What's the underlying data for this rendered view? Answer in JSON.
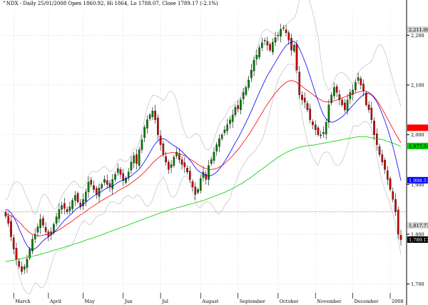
{
  "chart_data": {
    "type": "candlestick",
    "title": "^NDX - Daily 25/01/2008 Open 1860.92, Hi 1864, Lo 1788.07, Close 1789.17 (-2.1%)",
    "ylim": [
      1685,
      2245
    ],
    "y_ticks": [
      "2,200",
      "2,100",
      "2,000",
      "1,900",
      "1,800",
      "1,700"
    ],
    "y_tick_values": [
      2200,
      2100,
      2000,
      1900,
      1800,
      1700
    ],
    "months": [
      "March",
      "April",
      "May",
      "Jun",
      "Jul",
      "August",
      "September",
      "October",
      "November",
      "December",
      "2008"
    ],
    "badges": [
      {
        "label": "2,211.08",
        "value": 2211.08,
        "bg": "#d3d3d3",
        "fg": "#000000"
      },
      {
        "label": "2,014.01",
        "value": 2014.01,
        "bg": "#ff0000",
        "fg": "#ff0000"
      },
      {
        "label": "1,977.34",
        "value": 1977.34,
        "bg": "#00cc00",
        "fg": "#000000"
      },
      {
        "label": "1,908.57",
        "value": 1908.57,
        "bg": "#0000ff",
        "fg": "#ffffff"
      },
      {
        "label": "1,817.77",
        "value": 1817.77,
        "bg": "#d3d3d3",
        "fg": "#000000"
      },
      {
        "label": "1,789.17",
        "value": 1789.17,
        "bg": "#000000",
        "fg": "#ffffff"
      }
    ],
    "reference_line": 1845,
    "colors": {
      "up": "#008000",
      "down": "#cc0000",
      "ma_short": "#0000ff",
      "ma_mid": "#ff0000",
      "ma_long": "#00cc00",
      "bands": "#c0c0c0",
      "ref_line": "#ff0000"
    },
    "series": [
      {
        "name": "close",
        "values": [
          1836,
          1822,
          1795,
          1770,
          1750,
          1735,
          1725,
          1735,
          1750,
          1770,
          1790,
          1800,
          1815,
          1830,
          1818,
          1805,
          1795,
          1805,
          1820,
          1835,
          1850,
          1858,
          1852,
          1845,
          1855,
          1868,
          1878,
          1865,
          1855,
          1870,
          1885,
          1905,
          1900,
          1890,
          1880,
          1893,
          1900,
          1910,
          1900,
          1895,
          1910,
          1920,
          1932,
          1920,
          1908,
          1913,
          1925,
          1945,
          1958,
          1942,
          1970,
          1990,
          2015,
          2030,
          2040,
          2048,
          2030,
          2000,
          1980,
          1960,
          1945,
          1930,
          1940,
          1955,
          1965,
          1950,
          1940,
          1935,
          1925,
          1910,
          1895,
          1880,
          1890,
          1912,
          1925,
          1910,
          1938,
          1950,
          1965,
          1980,
          1992,
          2000,
          2010,
          2020,
          2030,
          2040,
          2055,
          2052,
          2070,
          2085,
          2095,
          2110,
          2130,
          2150,
          2160,
          2175,
          2185,
          2190,
          2180,
          2170,
          2186,
          2195,
          2200,
          2212,
          2215,
          2205,
          2190,
          2170,
          2180,
          2130,
          2080,
          2070,
          2065,
          2050,
          2030,
          2020,
          2010,
          2000,
          2000,
          2005,
          2025,
          2060,
          2080,
          2095,
          2085,
          2070,
          2060,
          2050,
          2070,
          2085,
          2090,
          2105,
          2115,
          2100,
          2088,
          2060,
          2050,
          2030,
          2000,
          1980,
          1960,
          1945,
          1930,
          1910,
          1890,
          1870,
          1845,
          1800,
          1789
        ]
      },
      {
        "name": "ma_short",
        "values": [
          1850,
          1848,
          1843,
          1835,
          1824,
          1811,
          1799,
          1787,
          1777,
          1771,
          1769,
          1771,
          1775,
          1781,
          1787,
          1791,
          1795,
          1799,
          1803,
          1809,
          1815,
          1822,
          1828,
          1833,
          1838,
          1843,
          1849,
          1853,
          1856,
          1860,
          1864,
          1869,
          1873,
          1877,
          1880,
          1883,
          1886,
          1890,
          1893,
          1895,
          1897,
          1900,
          1904,
          1907,
          1909,
          1911,
          1914,
          1917,
          1922,
          1926,
          1931,
          1938,
          1946,
          1955,
          1964,
          1974,
          1982,
          1988,
          1991,
          1992,
          1990,
          1986,
          1982,
          1978,
          1975,
          1971,
          1966,
          1961,
          1955,
          1949,
          1942,
          1934,
          1928,
          1924,
          1921,
          1918,
          1917,
          1918,
          1921,
          1925,
          1931,
          1938,
          1946,
          1955,
          1964,
          1974,
          1984,
          1993,
          2003,
          2014,
          2025,
          2036,
          2048,
          2060,
          2073,
          2085,
          2097,
          2108,
          2119,
          2128,
          2137,
          2146,
          2155,
          2164,
          2172,
          2179,
          2184,
          2186,
          2188,
          2183,
          2173,
          2161,
          2148,
          2133,
          2117,
          2100,
          2083,
          2068,
          2053,
          2040,
          2032,
          2027,
          2025,
          2026,
          2029,
          2032,
          2036,
          2041,
          2047,
          2053,
          2059,
          2065,
          2071,
          2076,
          2081,
          2083,
          2083,
          2080,
          2074,
          2066,
          2055,
          2042,
          2028,
          2012,
          1995,
          1976,
          1955,
          1932,
          1908
        ]
      },
      {
        "name": "ma_mid",
        "values": [
          1840,
          1839,
          1837,
          1834,
          1830,
          1825,
          1819,
          1813,
          1808,
          1803,
          1800,
          1798,
          1797,
          1797,
          1798,
          1799,
          1800,
          1802,
          1804,
          1806,
          1809,
          1812,
          1816,
          1820,
          1823,
          1827,
          1831,
          1835,
          1839,
          1842,
          1846,
          1850,
          1854,
          1857,
          1861,
          1864,
          1868,
          1871,
          1874,
          1877,
          1880,
          1883,
          1887,
          1890,
          1893,
          1896,
          1899,
          1903,
          1907,
          1911,
          1915,
          1920,
          1925,
          1931,
          1937,
          1943,
          1948,
          1953,
          1957,
          1960,
          1962,
          1963,
          1964,
          1964,
          1963,
          1962,
          1960,
          1958,
          1955,
          1951,
          1948,
          1944,
          1940,
          1937,
          1934,
          1932,
          1930,
          1930,
          1931,
          1932,
          1935,
          1938,
          1942,
          1947,
          1952,
          1958,
          1964,
          1970,
          1977,
          1985,
          1992,
          2000,
          2008,
          2017,
          2026,
          2035,
          2044,
          2053,
          2061,
          2069,
          2077,
          2084,
          2090,
          2096,
          2101,
          2105,
          2108,
          2109,
          2108,
          2105,
          2101,
          2097,
          2093,
          2089,
          2085,
          2081,
          2077,
          2073,
          2070,
          2067,
          2066,
          2066,
          2067,
          2068,
          2070,
          2072,
          2074,
          2076,
          2078,
          2080,
          2082,
          2084,
          2086,
          2087,
          2088,
          2087,
          2085,
          2081,
          2076,
          2069,
          2061,
          2052,
          2042,
          2032,
          2022,
          2012,
          2002,
          1993,
          1984
        ]
      },
      {
        "name": "ma_long",
        "values": [
          1745,
          1746,
          1747,
          1748,
          1749,
          1750,
          1751,
          1752,
          1754,
          1755,
          1756,
          1757,
          1758,
          1760,
          1761,
          1763,
          1764,
          1766,
          1768,
          1769,
          1771,
          1772,
          1774,
          1776,
          1777,
          1779,
          1781,
          1782,
          1784,
          1786,
          1788,
          1790,
          1791,
          1793,
          1795,
          1797,
          1799,
          1801,
          1803,
          1805,
          1807,
          1809,
          1811,
          1813,
          1815,
          1817,
          1819,
          1821,
          1823,
          1825,
          1827,
          1829,
          1831,
          1833,
          1835,
          1837,
          1839,
          1841,
          1843,
          1845,
          1846,
          1848,
          1850,
          1851,
          1853,
          1854,
          1856,
          1857,
          1859,
          1860,
          1862,
          1863,
          1865,
          1866,
          1868,
          1870,
          1872,
          1874,
          1876,
          1878,
          1880,
          1882,
          1884,
          1887,
          1889,
          1892,
          1895,
          1898,
          1901,
          1904,
          1908,
          1911,
          1915,
          1919,
          1923,
          1927,
          1931,
          1935,
          1939,
          1943,
          1947,
          1951,
          1955,
          1958,
          1961,
          1964,
          1967,
          1969,
          1971,
          1973,
          1975,
          1976,
          1977,
          1978,
          1979,
          1979,
          1980,
          1981,
          1982,
          1983,
          1984,
          1985,
          1986,
          1987,
          1988,
          1989,
          1990,
          1991,
          1992,
          1993,
          1994,
          1995,
          1996,
          1996,
          1996,
          1996,
          1995,
          1994,
          1993,
          1992,
          1991,
          1990,
          1989,
          1987,
          1985,
          1983,
          1981,
          1979,
          1977
        ]
      }
    ]
  }
}
